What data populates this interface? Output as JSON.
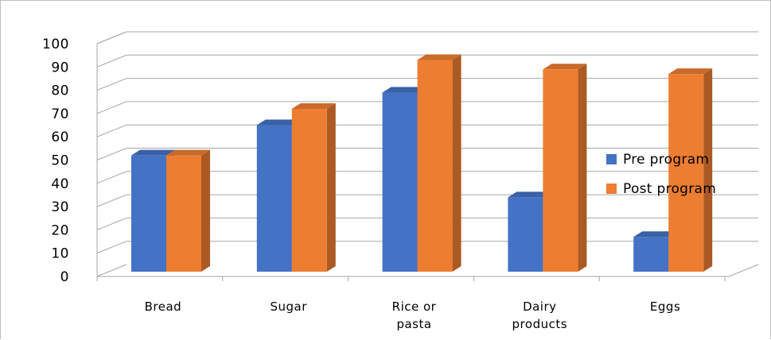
{
  "chart_data": {
    "type": "bar",
    "style": "3d-clustered-column",
    "categories": [
      "Bread",
      "Sugar",
      "Rice or\npasta",
      "Dairy\nproducts",
      "Eggs"
    ],
    "series": [
      {
        "name": "Pre program",
        "color": "#4472c4",
        "values": [
          52,
          65,
          79,
          34,
          17
        ]
      },
      {
        "name": "Post program",
        "color": "#ed7d31",
        "values": [
          52,
          72,
          93,
          89,
          87
        ]
      }
    ],
    "yticks": [
      "0",
      "10",
      "20",
      "30",
      "40",
      "50",
      "60",
      "70",
      "80",
      "90",
      "100"
    ],
    "ylim": [
      0,
      100
    ],
    "grid": true,
    "legend_position": "right"
  }
}
